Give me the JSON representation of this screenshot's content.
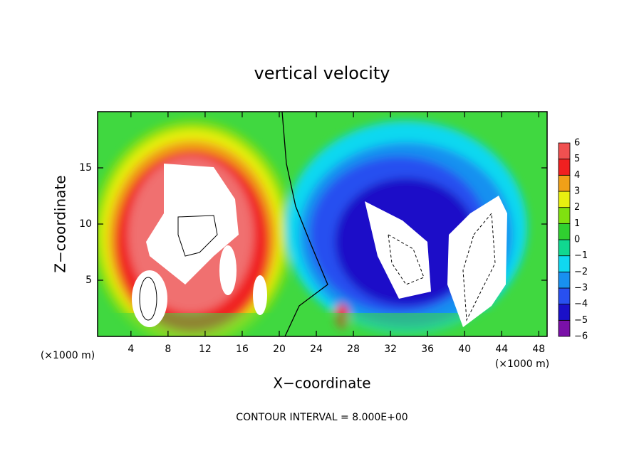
{
  "chart_data": {
    "type": "contour",
    "title": "vertical velocity",
    "x_label": "X−coordinate",
    "y_label": "Z−coordinate",
    "x_unit": "(×1000 m)",
    "x_unit_right": "(×1000 m)",
    "footnote": "CONTOUR INTERVAL = 8.000E+00",
    "xlim": [
      0.4,
      48.9
    ],
    "ylim": [
      0,
      20
    ],
    "xticks": [
      4,
      8,
      12,
      16,
      20,
      24,
      28,
      32,
      36,
      40,
      44,
      48
    ],
    "yticks": [
      5,
      10,
      15
    ],
    "colorbar": {
      "levels": [
        {
          "value": -6,
          "label": "−6"
        },
        {
          "value": -5,
          "label": "−5"
        },
        {
          "value": -4,
          "label": "−4"
        },
        {
          "value": -3,
          "label": "−3"
        },
        {
          "value": -2,
          "label": "−2"
        },
        {
          "value": -1,
          "label": "−1"
        },
        0,
        1,
        2,
        3,
        4,
        5,
        6
      ],
      "colors": [
        "#7a10a8",
        "#1a10c8",
        "#2850f0",
        "#1890f0",
        "#10d8f0",
        "#10d890",
        "#30d030",
        "#80e010",
        "#e8f010",
        "#f0a018",
        "#f02020",
        "#f05050"
      ]
    }
  }
}
